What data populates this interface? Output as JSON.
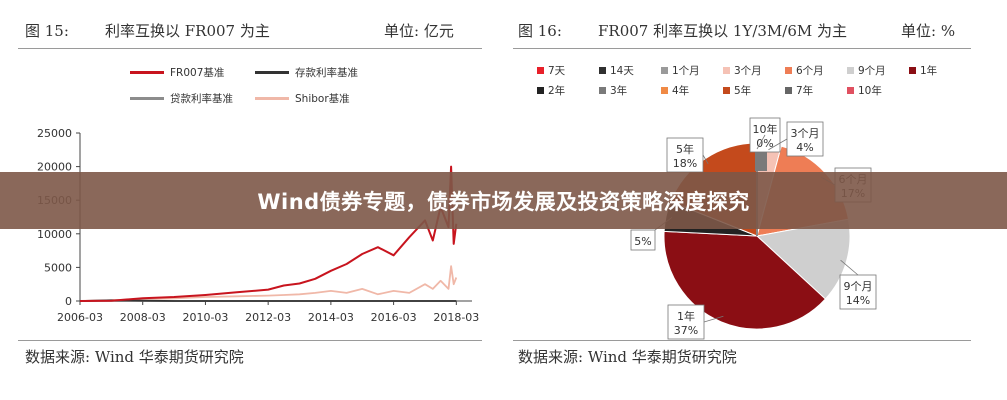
{
  "left": {
    "fig_number": "图 15:",
    "title": "利率互换以 FR007 为主",
    "unit": "单位: 亿元",
    "source": "数据来源: Wind 华泰期货研究院"
  },
  "right": {
    "fig_number": "图 16:",
    "title": "FR007 利率互换以 1Y/3M/6M 为主",
    "unit": "单位: %",
    "source": "数据来源: Wind 华泰期货研究院"
  },
  "banner": {
    "text": "Wind债券专题，债券市场发展及投资策略深度探究"
  },
  "chart_data": [
    {
      "type": "line",
      "legend_position": "top",
      "ylim": [
        0,
        25000
      ],
      "yticks": [
        0,
        5000,
        10000,
        15000,
        20000,
        25000
      ],
      "xticks": [
        "2006-03",
        "2008-03",
        "2010-03",
        "2012-03",
        "2014-03",
        "2016-03",
        "2018-03"
      ],
      "x": [
        "2006-03",
        "2007-03",
        "2008-03",
        "2009-03",
        "2010-03",
        "2011-03",
        "2012-03",
        "2012-09",
        "2013-03",
        "2013-09",
        "2014-03",
        "2014-09",
        "2015-03",
        "2015-09",
        "2016-03",
        "2016-09",
        "2017-03",
        "2017-06",
        "2017-09",
        "2017-12",
        "2018-01",
        "2018-02",
        "2018-03"
      ],
      "series": [
        {
          "name": "FR007基准",
          "color": "#c8141e",
          "values": [
            0,
            50,
            400,
            600,
            900,
            1300,
            1700,
            2300,
            2600,
            3300,
            4500,
            5500,
            7000,
            8000,
            6800,
            9500,
            12000,
            9000,
            14000,
            11000,
            20000,
            8500,
            11500
          ]
        },
        {
          "name": "存款利率基准",
          "color": "#333333",
          "values": [
            0,
            100,
            50,
            0,
            0,
            0,
            0,
            0,
            0,
            0,
            0,
            0,
            0,
            0,
            0,
            0,
            0,
            0,
            0,
            0,
            0,
            0,
            0
          ]
        },
        {
          "name": "贷款利率基准",
          "color": "#8c8c8c",
          "values": [
            0,
            0,
            0,
            0,
            0,
            0,
            0,
            0,
            0,
            0,
            0,
            0,
            0,
            0,
            0,
            0,
            0,
            0,
            0,
            0,
            0,
            0,
            0
          ]
        },
        {
          "name": "Shibor基准",
          "color": "#f0b8a8",
          "values": [
            0,
            100,
            300,
            400,
            600,
            700,
            800,
            900,
            1000,
            1200,
            1500,
            1200,
            1800,
            1000,
            1500,
            1200,
            2500,
            1800,
            3000,
            1800,
            5200,
            2500,
            3500
          ]
        }
      ]
    },
    {
      "type": "pie",
      "legend_position": "top",
      "slices": [
        {
          "name": "7天",
          "value": 0,
          "color": "#e8202a"
        },
        {
          "name": "14天",
          "value": 0,
          "color": "#303030"
        },
        {
          "name": "1个月",
          "value": 0,
          "color": "#9a9a9a"
        },
        {
          "name": "3个月",
          "value": 4,
          "color": "#f5c2b5"
        },
        {
          "name": "6个月",
          "value": 17,
          "color": "#ee7d55"
        },
        {
          "name": "9个月",
          "value": 14,
          "color": "#cfcfcf"
        },
        {
          "name": "1年",
          "value": 37,
          "color": "#8b0e14"
        },
        {
          "name": "2年",
          "value": 5,
          "color": "#222222"
        },
        {
          "name": "3年",
          "value": 0,
          "color": "#7a7a7a"
        },
        {
          "name": "4年",
          "value": 0,
          "color": "#f08a45"
        },
        {
          "name": "5年",
          "value": 18,
          "color": "#c44a1c"
        },
        {
          "name": "7年",
          "value": 0,
          "color": "#666666"
        },
        {
          "name": "10年",
          "value": 0,
          "color": "#e05060"
        }
      ],
      "label_texts": {
        "10年": "10年\n0%",
        "3个月": "3个月\n4%",
        "5年": "5年\n18%",
        "6个月": "6个月\n17%",
        "2年": "5%",
        "9个月": "9个月\n14%",
        "1年": "1年\n37%"
      }
    }
  ]
}
